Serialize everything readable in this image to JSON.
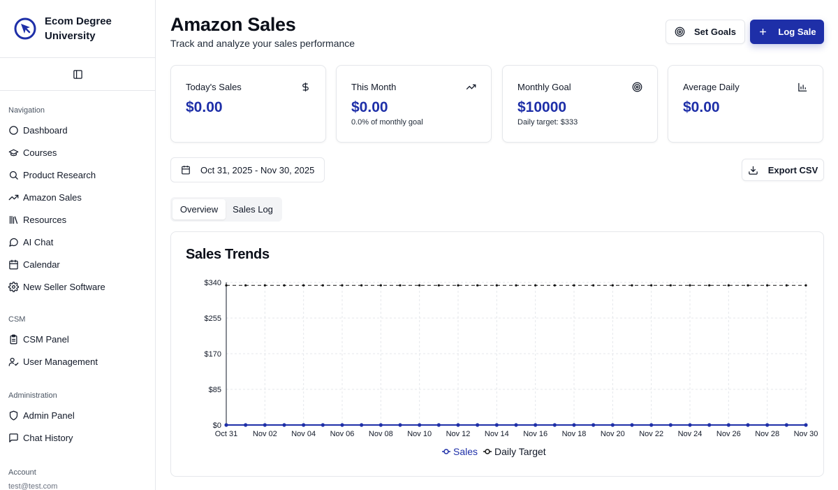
{
  "brand": {
    "name": "Ecom Degree University",
    "logo": "target-arrow-logo"
  },
  "sidebar": {
    "sections": [
      {
        "label": "Navigation",
        "items": [
          {
            "label": "Dashboard",
            "icon": "circle-icon"
          },
          {
            "label": "Courses",
            "icon": "graduation-cap-icon"
          },
          {
            "label": "Product Research",
            "icon": "search-icon"
          },
          {
            "label": "Amazon Sales",
            "icon": "trending-up-icon"
          },
          {
            "label": "Resources",
            "icon": "library-icon"
          },
          {
            "label": "AI Chat",
            "icon": "message-circle-icon"
          },
          {
            "label": "Calendar",
            "icon": "calendar-icon"
          },
          {
            "label": "New Seller Software",
            "icon": "gear-icon"
          }
        ]
      },
      {
        "label": "CSM",
        "items": [
          {
            "label": "CSM Panel",
            "icon": "clipboard-icon"
          },
          {
            "label": "User Management",
            "icon": "user-check-icon"
          }
        ]
      },
      {
        "label": "Administration",
        "items": [
          {
            "label": "Admin Panel",
            "icon": "shield-icon"
          },
          {
            "label": "Chat History",
            "icon": "message-square-icon"
          }
        ]
      },
      {
        "label": "Account",
        "items": [
          {
            "label": "test@test.com",
            "icon": ""
          }
        ]
      }
    ]
  },
  "header": {
    "title": "Amazon Sales",
    "subtitle": "Track and analyze your sales performance",
    "set_goals_label": "Set Goals",
    "log_sale_label": "Log Sale"
  },
  "stats": [
    {
      "label": "Today's Sales",
      "value": "$0.00",
      "sub": "",
      "icon": "dollar-icon"
    },
    {
      "label": "This Month",
      "value": "$0.00",
      "sub": "0.0% of monthly goal",
      "icon": "trending-up-icon"
    },
    {
      "label": "Monthly Goal",
      "value": "$10000",
      "sub": "Daily target: $333",
      "icon": "target-icon"
    },
    {
      "label": "Average Daily",
      "value": "$0.00",
      "sub": "",
      "icon": "bar-chart-icon"
    }
  ],
  "date_range": "Oct 31, 2025 - Nov 30, 2025",
  "export_label": "Export CSV",
  "tabs": [
    "Overview",
    "Sales Log"
  ],
  "active_tab": "Overview",
  "chart": {
    "title": "Sales Trends",
    "colors": {
      "sales": "#1e2fa8",
      "target": "#111111",
      "grid": "#e5e7eb"
    }
  },
  "chart_data": {
    "type": "line",
    "title": "Sales Trends",
    "xlabel": "",
    "ylabel": "",
    "ylim": [
      0,
      340
    ],
    "y_ticks": [
      "$0",
      "$85",
      "$170",
      "$255",
      "$340"
    ],
    "x_tick_labels": [
      "Oct 31",
      "Nov 02",
      "Nov 04",
      "Nov 06",
      "Nov 08",
      "Nov 10",
      "Nov 12",
      "Nov 14",
      "Nov 16",
      "Nov 18",
      "Nov 20",
      "Nov 22",
      "Nov 24",
      "Nov 26",
      "Nov 28",
      "Nov 30"
    ],
    "x": [
      "Oct 31",
      "Nov 01",
      "Nov 02",
      "Nov 03",
      "Nov 04",
      "Nov 05",
      "Nov 06",
      "Nov 07",
      "Nov 08",
      "Nov 09",
      "Nov 10",
      "Nov 11",
      "Nov 12",
      "Nov 13",
      "Nov 14",
      "Nov 15",
      "Nov 16",
      "Nov 17",
      "Nov 18",
      "Nov 19",
      "Nov 20",
      "Nov 21",
      "Nov 22",
      "Nov 23",
      "Nov 24",
      "Nov 25",
      "Nov 26",
      "Nov 27",
      "Nov 28",
      "Nov 29",
      "Nov 30"
    ],
    "series": [
      {
        "name": "Sales",
        "values": [
          0,
          0,
          0,
          0,
          0,
          0,
          0,
          0,
          0,
          0,
          0,
          0,
          0,
          0,
          0,
          0,
          0,
          0,
          0,
          0,
          0,
          0,
          0,
          0,
          0,
          0,
          0,
          0,
          0,
          0,
          0
        ]
      },
      {
        "name": "Daily Target",
        "values": [
          333,
          333,
          333,
          333,
          333,
          333,
          333,
          333,
          333,
          333,
          333,
          333,
          333,
          333,
          333,
          333,
          333,
          333,
          333,
          333,
          333,
          333,
          333,
          333,
          333,
          333,
          333,
          333,
          333,
          333,
          333
        ]
      }
    ],
    "grid": true,
    "legend": "bottom-center"
  }
}
